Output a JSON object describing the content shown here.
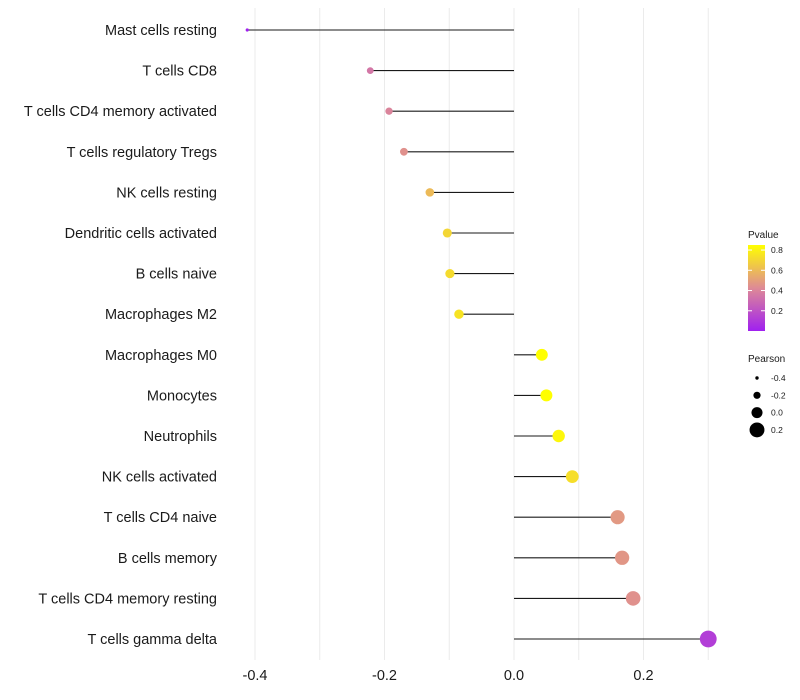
{
  "chart_data": {
    "type": "lollipop",
    "title": "",
    "xlabel": "",
    "ylabel": "",
    "xlim": [
      -0.44,
      0.32
    ],
    "xticks": [
      -0.4,
      -0.2,
      0.0,
      0.2
    ],
    "xtick_labels": [
      "-0.4",
      "-0.2",
      "0.0",
      "0.2"
    ],
    "grid": true,
    "categories": [
      "Mast cells resting",
      "T cells CD8",
      "T cells CD4 memory activated",
      "T cells regulatory  Tregs",
      "NK cells resting",
      "Dendritic cells activated",
      "B cells naive",
      "Macrophages M2",
      "Macrophages M0",
      "Monocytes",
      "Neutrophils",
      "NK cells activated",
      "T cells CD4 naive",
      "B cells memory",
      "T cells CD4 memory resting",
      "T cells gamma delta"
    ],
    "pearson": [
      -0.412,
      -0.222,
      -0.193,
      -0.17,
      -0.13,
      -0.103,
      -0.099,
      -0.085,
      0.043,
      0.05,
      0.069,
      0.09,
      0.16,
      0.167,
      0.184,
      0.3
    ],
    "pvalue": [
      0.0,
      0.35,
      0.4,
      0.45,
      0.6,
      0.7,
      0.72,
      0.75,
      0.92,
      0.9,
      0.82,
      0.73,
      0.48,
      0.47,
      0.45,
      0.12
    ],
    "legends": {
      "color": {
        "title": "Pvalue",
        "ticks": [
          0.2,
          0.4,
          0.6,
          0.8
        ],
        "tick_labels": [
          "0.2",
          "0.4",
          "0.6",
          "0.8"
        ],
        "range": [
          0.0,
          0.85
        ],
        "color_low": "#a020f0",
        "color_mid": "#de8a96",
        "color_high": "#ffff00"
      },
      "size": {
        "title": "Pearson",
        "values": [
          -0.4,
          -0.2,
          0.0,
          0.2
        ],
        "labels": [
          "-0.4",
          "-0.2",
          "0.0",
          "0.2"
        ]
      }
    },
    "legend_position": "right"
  }
}
